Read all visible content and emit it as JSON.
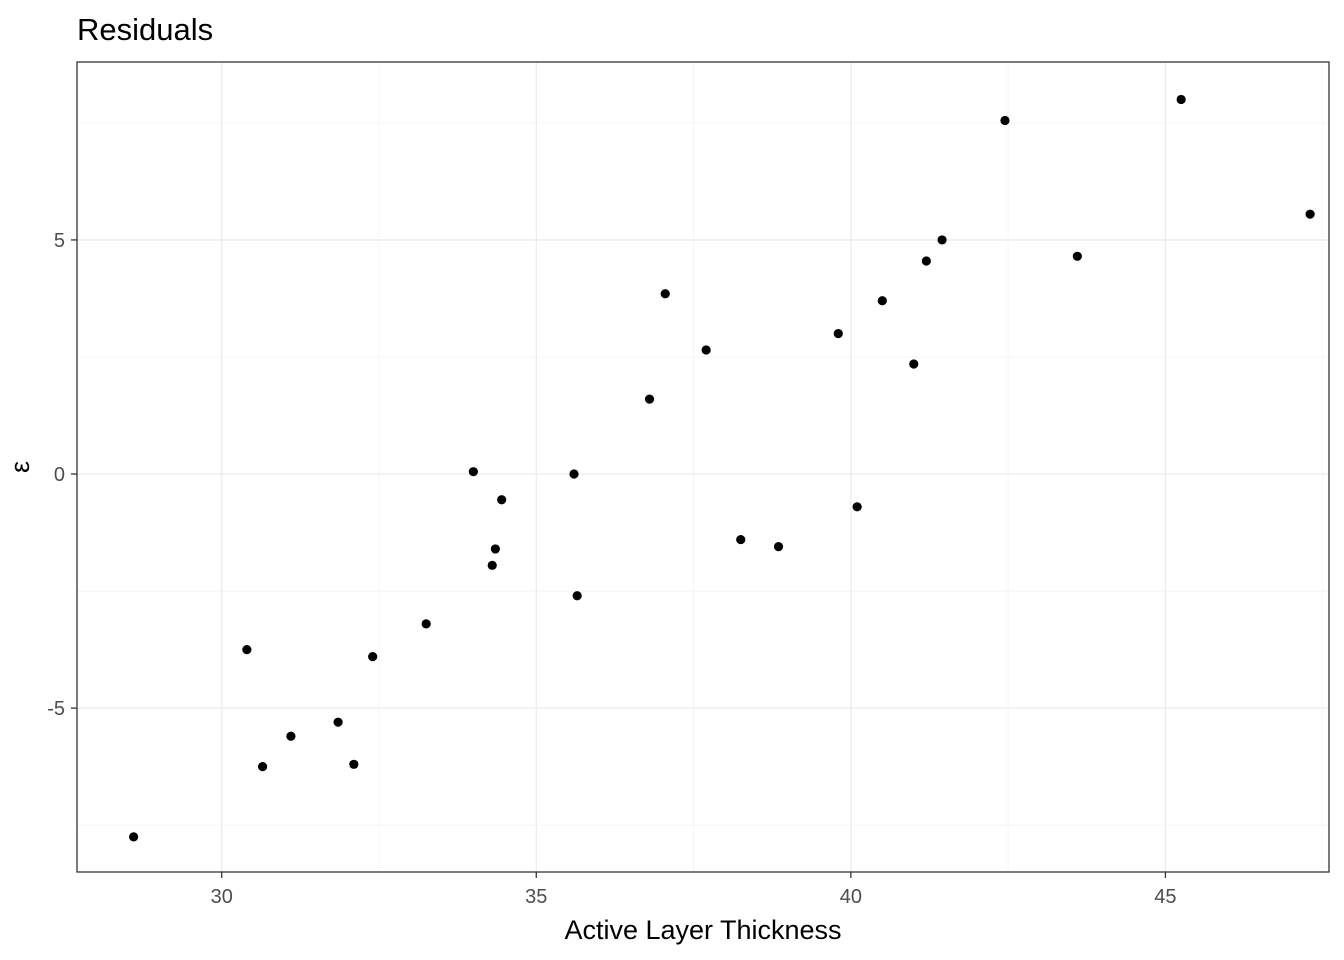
{
  "chart_data": {
    "type": "scatter",
    "title": "Residuals",
    "xlabel": "Active Layer Thickness",
    "ylabel": "ε",
    "xlim": [
      27.7,
      47.6
    ],
    "ylim": [
      -8.5,
      8.8
    ],
    "x_ticks": [
      30,
      35,
      40,
      45
    ],
    "x_tick_labels": [
      "30",
      "35",
      "40",
      "45"
    ],
    "y_ticks": [
      -5,
      0,
      5
    ],
    "y_tick_labels": [
      "-5",
      "0",
      "5"
    ],
    "x_minor": [
      32.5,
      37.5,
      42.5,
      47.5
    ],
    "y_minor": [
      -7.5,
      -2.5,
      2.5,
      7.5
    ],
    "grid": true,
    "theme": "bw",
    "point_color": "#000000",
    "points": [
      {
        "x": 28.6,
        "y": -7.75
      },
      {
        "x": 30.4,
        "y": -3.75
      },
      {
        "x": 30.65,
        "y": -6.25
      },
      {
        "x": 31.1,
        "y": -5.6
      },
      {
        "x": 31.85,
        "y": -5.3
      },
      {
        "x": 32.1,
        "y": -6.2
      },
      {
        "x": 32.4,
        "y": -3.9
      },
      {
        "x": 33.25,
        "y": -3.2
      },
      {
        "x": 34.0,
        "y": 0.05
      },
      {
        "x": 34.3,
        "y": -1.95
      },
      {
        "x": 34.35,
        "y": -1.6
      },
      {
        "x": 34.45,
        "y": -0.55
      },
      {
        "x": 35.6,
        "y": 0.0
      },
      {
        "x": 35.65,
        "y": -2.6
      },
      {
        "x": 36.8,
        "y": 1.6
      },
      {
        "x": 37.05,
        "y": 3.85
      },
      {
        "x": 37.7,
        "y": 2.65
      },
      {
        "x": 38.25,
        "y": -1.4
      },
      {
        "x": 38.85,
        "y": -1.55
      },
      {
        "x": 39.8,
        "y": 3.0
      },
      {
        "x": 40.1,
        "y": -0.7
      },
      {
        "x": 40.5,
        "y": 3.7
      },
      {
        "x": 41.0,
        "y": 2.35
      },
      {
        "x": 41.2,
        "y": 4.55
      },
      {
        "x": 41.45,
        "y": 5.0
      },
      {
        "x": 42.45,
        "y": 7.55
      },
      {
        "x": 43.6,
        "y": 4.65
      },
      {
        "x": 45.25,
        "y": 8.0
      },
      {
        "x": 47.3,
        "y": 5.55
      }
    ]
  }
}
